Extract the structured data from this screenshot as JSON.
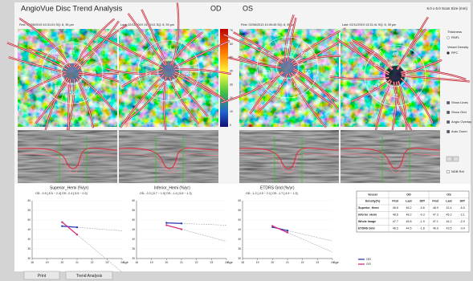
{
  "header": {
    "title": "AngioVue Disc Trend Analysis",
    "od": "OD",
    "os": "OS",
    "scan_size": "6.0 x 6.0 Scan Size (mm)"
  },
  "images": [
    {
      "caption": "First: 02/06/2019 10:31:01  SQ: 8, 39 µm",
      "sector_labels": [
        "61",
        "48",
        "54",
        "49",
        "55",
        "59",
        "51",
        "70"
      ]
    },
    {
      "caption": "Last: 02/11/2019 13:23:11  SQ: 8, 39 µm",
      "sector_labels": [
        "54",
        "47",
        "52",
        "50",
        "55",
        "58",
        "55"
      ]
    },
    {
      "caption": "First: 02/06/2019 10:39:45  SQ: 8, 39 µm",
      "sector_labels": [
        "48",
        "60",
        "55",
        "56",
        "49",
        "53",
        "58"
      ]
    },
    {
      "caption": "Last: 02/11/2019 13:31:41  SQ: 8, 39 µm",
      "sector_labels": [
        "49",
        "44",
        "19",
        "42",
        "47",
        "43"
      ]
    }
  ],
  "colorbar_labels": [
    "70",
    "60",
    "50",
    "40",
    "30",
    "20",
    "10",
    "0"
  ],
  "side_panel": [
    {
      "label": "Thickness",
      "kind": "heading"
    },
    {
      "label": "RNFL",
      "kind": "radio"
    },
    {
      "label": "Vessel Density",
      "kind": "heading"
    },
    {
      "label": "RPC",
      "kind": "radio-on"
    },
    {
      "label": "Show Lines",
      "kind": "check-on"
    },
    {
      "label": "Show Grid",
      "kind": "check-on"
    },
    {
      "label": "Angio Overlay",
      "kind": "check-on"
    },
    {
      "label": "Auto Zoom",
      "kind": "check-on"
    },
    {
      "label": "NDB Ref",
      "kind": "check"
    }
  ],
  "trend_charts": [
    {
      "type": "line",
      "title": "Superior_Hemi (%/yr)",
      "subtitle": "OD: -0.5 [-5.5 ~ 2.4]  OS: -2.4 [-5.5 ~ 0.3]",
      "x_label": "Age",
      "xlim": [
        18,
        24
      ],
      "xticks": [
        18,
        19,
        20,
        21,
        22,
        23,
        24
      ],
      "ylim": [
        30,
        60
      ],
      "yticks": [
        30,
        35,
        40,
        45,
        50,
        55,
        60
      ],
      "series": [
        {
          "name": "OD",
          "color": "#2b3fb8",
          "x": [
            20,
            21
          ],
          "values": [
            46.8,
            46.2
          ]
        },
        {
          "name": "OS",
          "color": "#d3307c",
          "x": [
            20,
            21
          ],
          "values": [
            48.9,
            42.4
          ]
        }
      ]
    },
    {
      "type": "line",
      "title": "Inferior_Hemi (%/yr)",
      "subtitle": "OD: -0.3 [-5.7 ~ 1.9]  OS: -1.4 [-5.8 ~ 1.3]",
      "x_label": "Age",
      "xlim": [
        18,
        24
      ],
      "xticks": [
        18,
        19,
        20,
        21,
        22,
        23,
        24
      ],
      "ylim": [
        30,
        60
      ],
      "yticks": [
        30,
        35,
        40,
        45,
        50,
        55,
        60
      ],
      "series": [
        {
          "name": "OD",
          "color": "#2b3fb8",
          "x": [
            20,
            21
          ],
          "values": [
            48.5,
            48.2
          ]
        },
        {
          "name": "OS",
          "color": "#d3307c",
          "x": [
            20,
            21
          ],
          "values": [
            47.3,
            45.2
          ]
        }
      ]
    },
    {
      "type": "line",
      "title": "ETDRS Grid (%/yr)",
      "subtitle": "OD: -1.2 [-4.5 ~ 2.1]  OS: -1.7 [-4.9 ~ 1.3]",
      "x_label": "Age",
      "xlim": [
        18,
        24
      ],
      "xticks": [
        18,
        19,
        20,
        21,
        22,
        23,
        24
      ],
      "ylim": [
        30,
        60
      ],
      "yticks": [
        30,
        35,
        40,
        45,
        50,
        55,
        60
      ],
      "series": [
        {
          "name": "OD",
          "color": "#2b3fb8",
          "x": [
            20,
            21
          ],
          "values": [
            46.3,
            44.5
          ]
        },
        {
          "name": "OS",
          "color": "#d3307c",
          "x": [
            20,
            21
          ],
          "values": [
            46.9,
            43.5
          ]
        }
      ]
    }
  ],
  "table": {
    "header_top": [
      "Vessel",
      "OD",
      "OS"
    ],
    "header_sub": [
      "Density(%)",
      "First",
      "Last",
      "Diff",
      "First",
      "Last",
      "Diff"
    ],
    "rows": [
      [
        "Superior_Hemi",
        46.8,
        46.2,
        -0.6,
        48.9,
        42.4,
        -6.5
      ],
      [
        "Inferior_Hemi",
        48.5,
        48.2,
        -0.3,
        47.3,
        45.2,
        -2.1
      ],
      [
        "Whole Image",
        47.7,
        45.8,
        -1.9,
        47.1,
        44.2,
        -2.9
      ],
      [
        "ETDRS Grid",
        46.3,
        44.5,
        -1.8,
        46.9,
        43.5,
        -3.4
      ]
    ]
  },
  "buttons": {
    "print": "Print",
    "trend": "Trend Analysis"
  }
}
